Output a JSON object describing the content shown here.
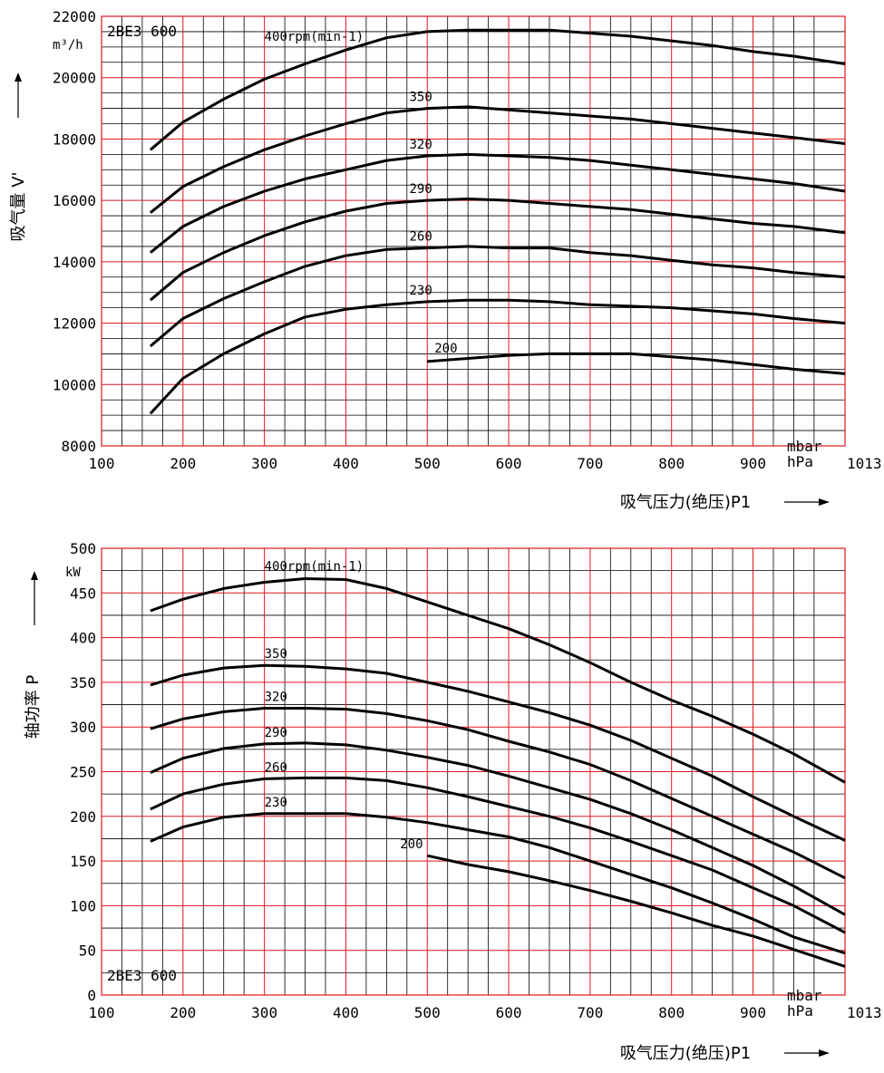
{
  "colors": {
    "grid_major": "#e0161c",
    "grid_minor": "#000000",
    "curve": "#000000",
    "background": "#ffffff"
  },
  "chart_data": [
    {
      "type": "line",
      "model": "2BE3 600",
      "ylabel": "吸气量 V'",
      "yunit": "m³/h",
      "xlabel": "吸气压力(绝压)P1",
      "xunit": [
        "mbar",
        "hPa"
      ],
      "xlim": [
        100,
        1013
      ],
      "ylim": [
        8000,
        22000
      ],
      "xticks": [
        "100",
        "200",
        "300",
        "400",
        "500",
        "600",
        "700",
        "800",
        "900",
        "1013"
      ],
      "yticks": [
        "8000",
        "10000",
        "12000",
        "14000",
        "16000",
        "18000",
        "20000",
        "22000"
      ],
      "grid": true,
      "series": [
        {
          "name": "400rpm(min-1)",
          "x": [
            160,
            200,
            250,
            300,
            350,
            400,
            450,
            500,
            550,
            600,
            650,
            700,
            750,
            800,
            850,
            900,
            950,
            1013
          ],
          "y": [
            17650,
            18550,
            19300,
            19950,
            20450,
            20900,
            21300,
            21500,
            21550,
            21550,
            21550,
            21450,
            21350,
            21200,
            21050,
            20850,
            20700,
            20450
          ]
        },
        {
          "name": "350",
          "x": [
            160,
            200,
            250,
            300,
            350,
            400,
            450,
            500,
            550,
            600,
            650,
            700,
            750,
            800,
            850,
            900,
            950,
            1013
          ],
          "y": [
            15600,
            16450,
            17100,
            17650,
            18100,
            18500,
            18850,
            19000,
            19050,
            18950,
            18850,
            18750,
            18650,
            18500,
            18350,
            18200,
            18050,
            17850
          ]
        },
        {
          "name": "320",
          "x": [
            160,
            200,
            250,
            300,
            350,
            400,
            450,
            500,
            550,
            600,
            650,
            700,
            750,
            800,
            850,
            900,
            950,
            1013
          ],
          "y": [
            14300,
            15150,
            15800,
            16300,
            16700,
            17000,
            17300,
            17450,
            17500,
            17450,
            17400,
            17300,
            17150,
            17000,
            16850,
            16700,
            16550,
            16300
          ]
        },
        {
          "name": "290",
          "x": [
            160,
            200,
            250,
            300,
            350,
            400,
            450,
            500,
            550,
            600,
            650,
            700,
            750,
            800,
            850,
            900,
            950,
            1013
          ],
          "y": [
            12750,
            13650,
            14300,
            14850,
            15300,
            15650,
            15900,
            16000,
            16050,
            16000,
            15900,
            15800,
            15700,
            15550,
            15400,
            15250,
            15150,
            14950
          ]
        },
        {
          "name": "260",
          "x": [
            160,
            200,
            250,
            300,
            350,
            400,
            450,
            500,
            550,
            600,
            650,
            700,
            750,
            800,
            850,
            900,
            950,
            1013
          ],
          "y": [
            11250,
            12150,
            12800,
            13350,
            13850,
            14200,
            14400,
            14450,
            14500,
            14450,
            14450,
            14300,
            14200,
            14050,
            13900,
            13800,
            13650,
            13500
          ]
        },
        {
          "name": "230",
          "x": [
            160,
            200,
            250,
            300,
            350,
            400,
            450,
            500,
            550,
            600,
            650,
            700,
            750,
            800,
            850,
            900,
            950,
            1013
          ],
          "y": [
            9050,
            10200,
            11000,
            11650,
            12200,
            12450,
            12600,
            12700,
            12750,
            12750,
            12700,
            12600,
            12550,
            12500,
            12400,
            12300,
            12150,
            12000
          ]
        },
        {
          "name": "200",
          "x": [
            500,
            550,
            600,
            650,
            700,
            750,
            800,
            850,
            900,
            950,
            1013
          ],
          "y": [
            10750,
            10850,
            10950,
            11000,
            11000,
            11000,
            10900,
            10800,
            10650,
            10500,
            10350
          ]
        }
      ]
    },
    {
      "type": "line",
      "model": "2BE3 600",
      "ylabel": "轴功率 P",
      "yunit": "kW",
      "xlabel": "吸气压力(绝压)P1",
      "xunit": [
        "mbar",
        "hPa"
      ],
      "xlim": [
        100,
        1013
      ],
      "ylim": [
        0,
        500
      ],
      "xticks": [
        "100",
        "200",
        "300",
        "400",
        "500",
        "600",
        "700",
        "800",
        "900",
        "1013"
      ],
      "yticks": [
        "0",
        "50",
        "100",
        "150",
        "200",
        "250",
        "300",
        "350",
        "400",
        "450",
        "500"
      ],
      "grid": true,
      "series": [
        {
          "name": "400rpm(min-1)",
          "x": [
            160,
            200,
            250,
            300,
            350,
            400,
            450,
            500,
            550,
            600,
            650,
            700,
            750,
            800,
            850,
            900,
            950,
            1013
          ],
          "y": [
            430,
            443,
            455,
            462,
            466,
            465,
            455,
            440,
            425,
            410,
            392,
            372,
            350,
            330,
            312,
            292,
            270,
            238
          ]
        },
        {
          "name": "350",
          "x": [
            160,
            200,
            250,
            300,
            350,
            400,
            450,
            500,
            550,
            600,
            650,
            700,
            750,
            800,
            850,
            900,
            950,
            1013
          ],
          "y": [
            347,
            358,
            366,
            369,
            368,
            365,
            360,
            350,
            340,
            328,
            316,
            302,
            285,
            265,
            245,
            222,
            200,
            173
          ]
        },
        {
          "name": "320",
          "x": [
            160,
            200,
            250,
            300,
            350,
            400,
            450,
            500,
            550,
            600,
            650,
            700,
            750,
            800,
            850,
            900,
            950,
            1013
          ],
          "y": [
            298,
            309,
            317,
            321,
            321,
            320,
            315,
            307,
            297,
            284,
            272,
            258,
            240,
            220,
            200,
            180,
            160,
            131
          ]
        },
        {
          "name": "290",
          "x": [
            160,
            200,
            250,
            300,
            350,
            400,
            450,
            500,
            550,
            600,
            650,
            700,
            750,
            800,
            850,
            900,
            950,
            1013
          ],
          "y": [
            249,
            265,
            276,
            281,
            282,
            280,
            274,
            266,
            257,
            245,
            232,
            219,
            203,
            185,
            165,
            145,
            122,
            90
          ]
        },
        {
          "name": "260",
          "x": [
            160,
            200,
            250,
            300,
            350,
            400,
            450,
            500,
            550,
            600,
            650,
            700,
            750,
            800,
            850,
            900,
            950,
            1013
          ],
          "y": [
            208,
            225,
            236,
            242,
            243,
            243,
            240,
            232,
            222,
            211,
            200,
            187,
            172,
            156,
            140,
            120,
            100,
            70
          ]
        },
        {
          "name": "230",
          "x": [
            160,
            200,
            250,
            300,
            350,
            400,
            450,
            500,
            550,
            600,
            650,
            700,
            750,
            800,
            850,
            900,
            950,
            1013
          ],
          "y": [
            172,
            188,
            199,
            203,
            203,
            203,
            199,
            193,
            185,
            177,
            165,
            150,
            135,
            120,
            103,
            85,
            65,
            47
          ]
        },
        {
          "name": "200",
          "x": [
            500,
            550,
            600,
            650,
            700,
            750,
            800,
            850,
            900,
            950,
            1013
          ],
          "y": [
            156,
            146,
            138,
            128,
            117,
            105,
            92,
            78,
            66,
            51,
            32
          ]
        }
      ]
    }
  ]
}
